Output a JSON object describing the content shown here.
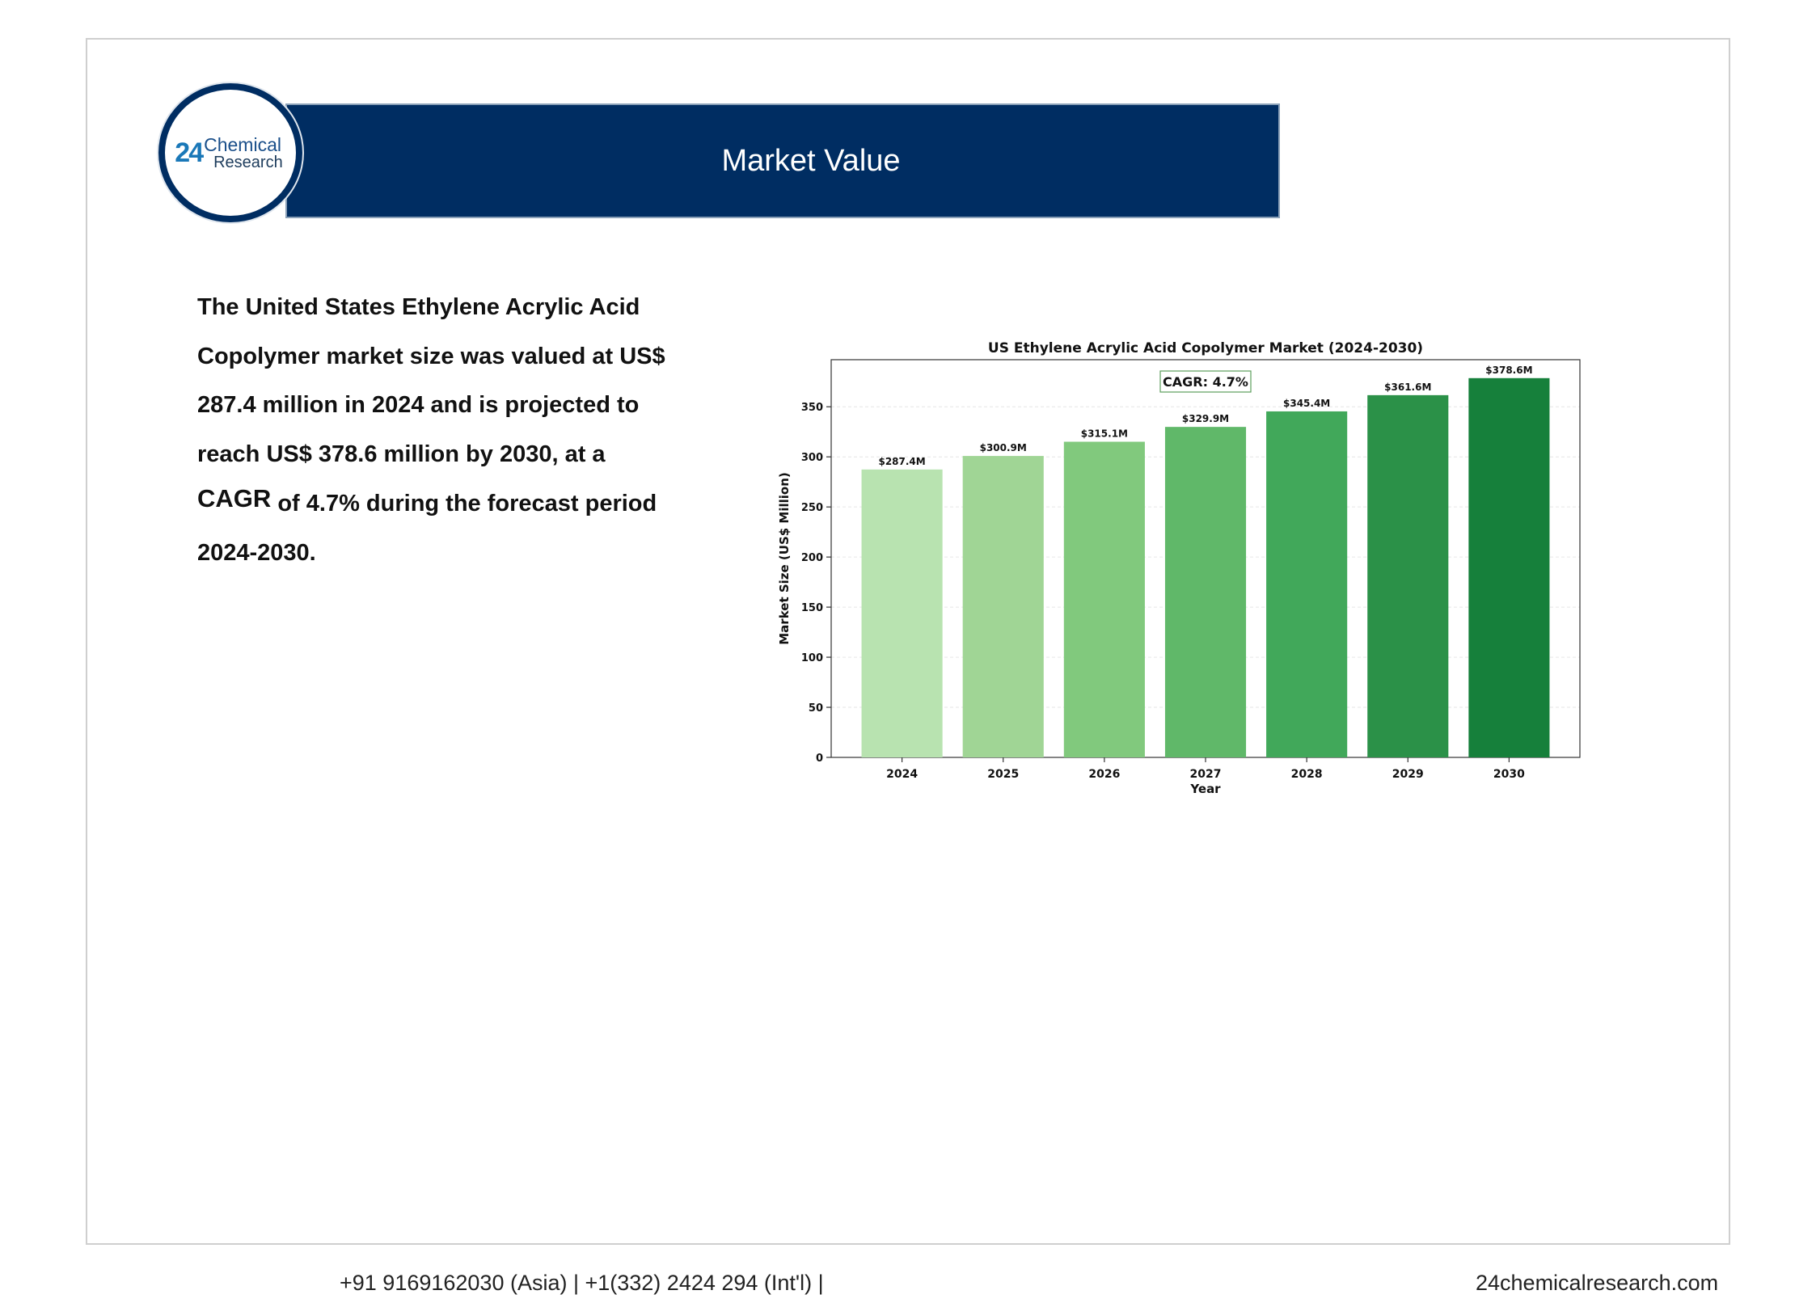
{
  "header": {
    "title": "Market Value",
    "logo": {
      "mark": "24",
      "line1": "Chemical",
      "line2": "Research"
    }
  },
  "summary": {
    "text_before": "The United States Ethylene Acrylic Acid Copolymer market size was valued at US$ 287.4 million in 2024 and is projected to reach US$ 378.6 million by 2030, at a ",
    "highlight": "CAGR",
    "text_after": " of 4.7% during the forecast period 2024-2030."
  },
  "chart_data": {
    "type": "bar",
    "title": "US Ethylene Acrylic Acid Copolymer Market (2024-2030)",
    "xlabel": "Year",
    "ylabel": "Market Size (US$ Million)",
    "categories": [
      "2024",
      "2025",
      "2026",
      "2027",
      "2028",
      "2029",
      "2030"
    ],
    "values": [
      287.4,
      300.9,
      315.1,
      329.9,
      345.4,
      361.6,
      378.6
    ],
    "data_labels": [
      "$287.4M",
      "$300.9M",
      "$315.1M",
      "$329.9M",
      "$345.4M",
      "$361.6M",
      "$378.6M"
    ],
    "ylim": [
      0,
      397
    ],
    "yticks": [
      0,
      50,
      100,
      150,
      200,
      250,
      300,
      350
    ],
    "annotation": "CAGR: 4.7%",
    "colors": [
      "#b8e3b0",
      "#a0d595",
      "#81c97d",
      "#60b869",
      "#41a85a",
      "#2b9148",
      "#16803b"
    ],
    "grid": true
  },
  "footer": {
    "left": "+91 9169162030 (Asia) | +1(332) 2424 294 (Int'l) |",
    "right": "24chemicalresearch.com"
  }
}
